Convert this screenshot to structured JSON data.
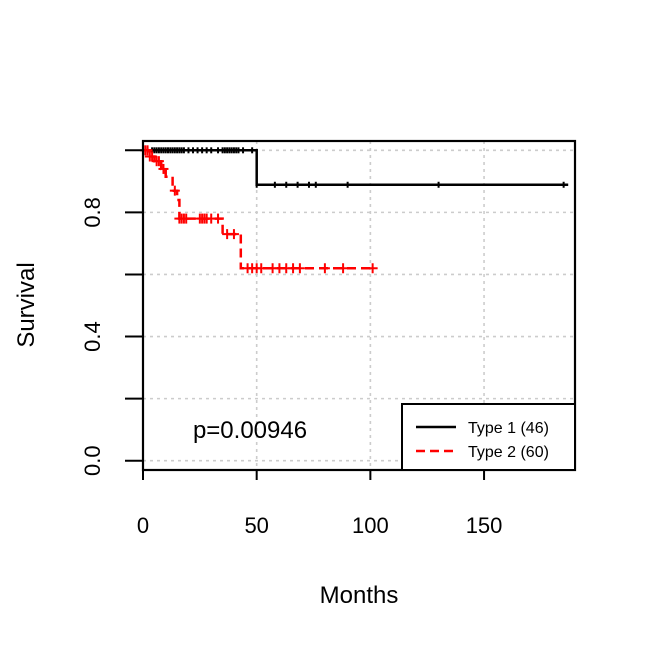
{
  "chart_data": {
    "type": "line",
    "subtype": "kaplan-meier",
    "title": "",
    "xlabel": "Months",
    "ylabel": "Survival",
    "xlim": [
      0,
      190
    ],
    "ylim": [
      -0.03,
      1.03
    ],
    "x_ticks": [
      0,
      50,
      100,
      150
    ],
    "y_ticks": [
      0.0,
      0.4,
      0.8
    ],
    "y_tick_labels": [
      "0.0",
      "0.4",
      "0.8"
    ],
    "grid": true,
    "legend_position": "bottom-right",
    "annotation": "p=0.00946",
    "series": [
      {
        "name": "Type 1 (46)",
        "color": "#000000",
        "line_style": "solid",
        "steps": [
          [
            0,
            1.0
          ],
          [
            50,
            1.0
          ],
          [
            50,
            0.889
          ],
          [
            187,
            0.889
          ]
        ],
        "censor_times": [
          2,
          4,
          5,
          6,
          7,
          8,
          9,
          10,
          11,
          12,
          13,
          14,
          15,
          16,
          17,
          18,
          20,
          22,
          24,
          26,
          28,
          30,
          33,
          35,
          36,
          37,
          38,
          39,
          40,
          41,
          42,
          44,
          48,
          50,
          58,
          63,
          68,
          73,
          76,
          90,
          130,
          185
        ]
      },
      {
        "name": "Type 2 (60)",
        "color": "#ff0000",
        "line_style": "dashed",
        "steps": [
          [
            0,
            1.0
          ],
          [
            3,
            1.0
          ],
          [
            3,
            0.98
          ],
          [
            5,
            0.98
          ],
          [
            5,
            0.965
          ],
          [
            8,
            0.965
          ],
          [
            8,
            0.94
          ],
          [
            10,
            0.94
          ],
          [
            10,
            0.915
          ],
          [
            13,
            0.915
          ],
          [
            13,
            0.87
          ],
          [
            15,
            0.87
          ],
          [
            15,
            0.84
          ],
          [
            16,
            0.84
          ],
          [
            16,
            0.78
          ],
          [
            35,
            0.78
          ],
          [
            35,
            0.73
          ],
          [
            43,
            0.73
          ],
          [
            43,
            0.62
          ],
          [
            102,
            0.62
          ]
        ],
        "censor_times": [
          1,
          2,
          3,
          4,
          6,
          7,
          9,
          14,
          16,
          17,
          18,
          19,
          25,
          26,
          27,
          28,
          30,
          33,
          37,
          40,
          46,
          48,
          50,
          52,
          57,
          60,
          63,
          66,
          69,
          80,
          88,
          101
        ]
      }
    ]
  }
}
